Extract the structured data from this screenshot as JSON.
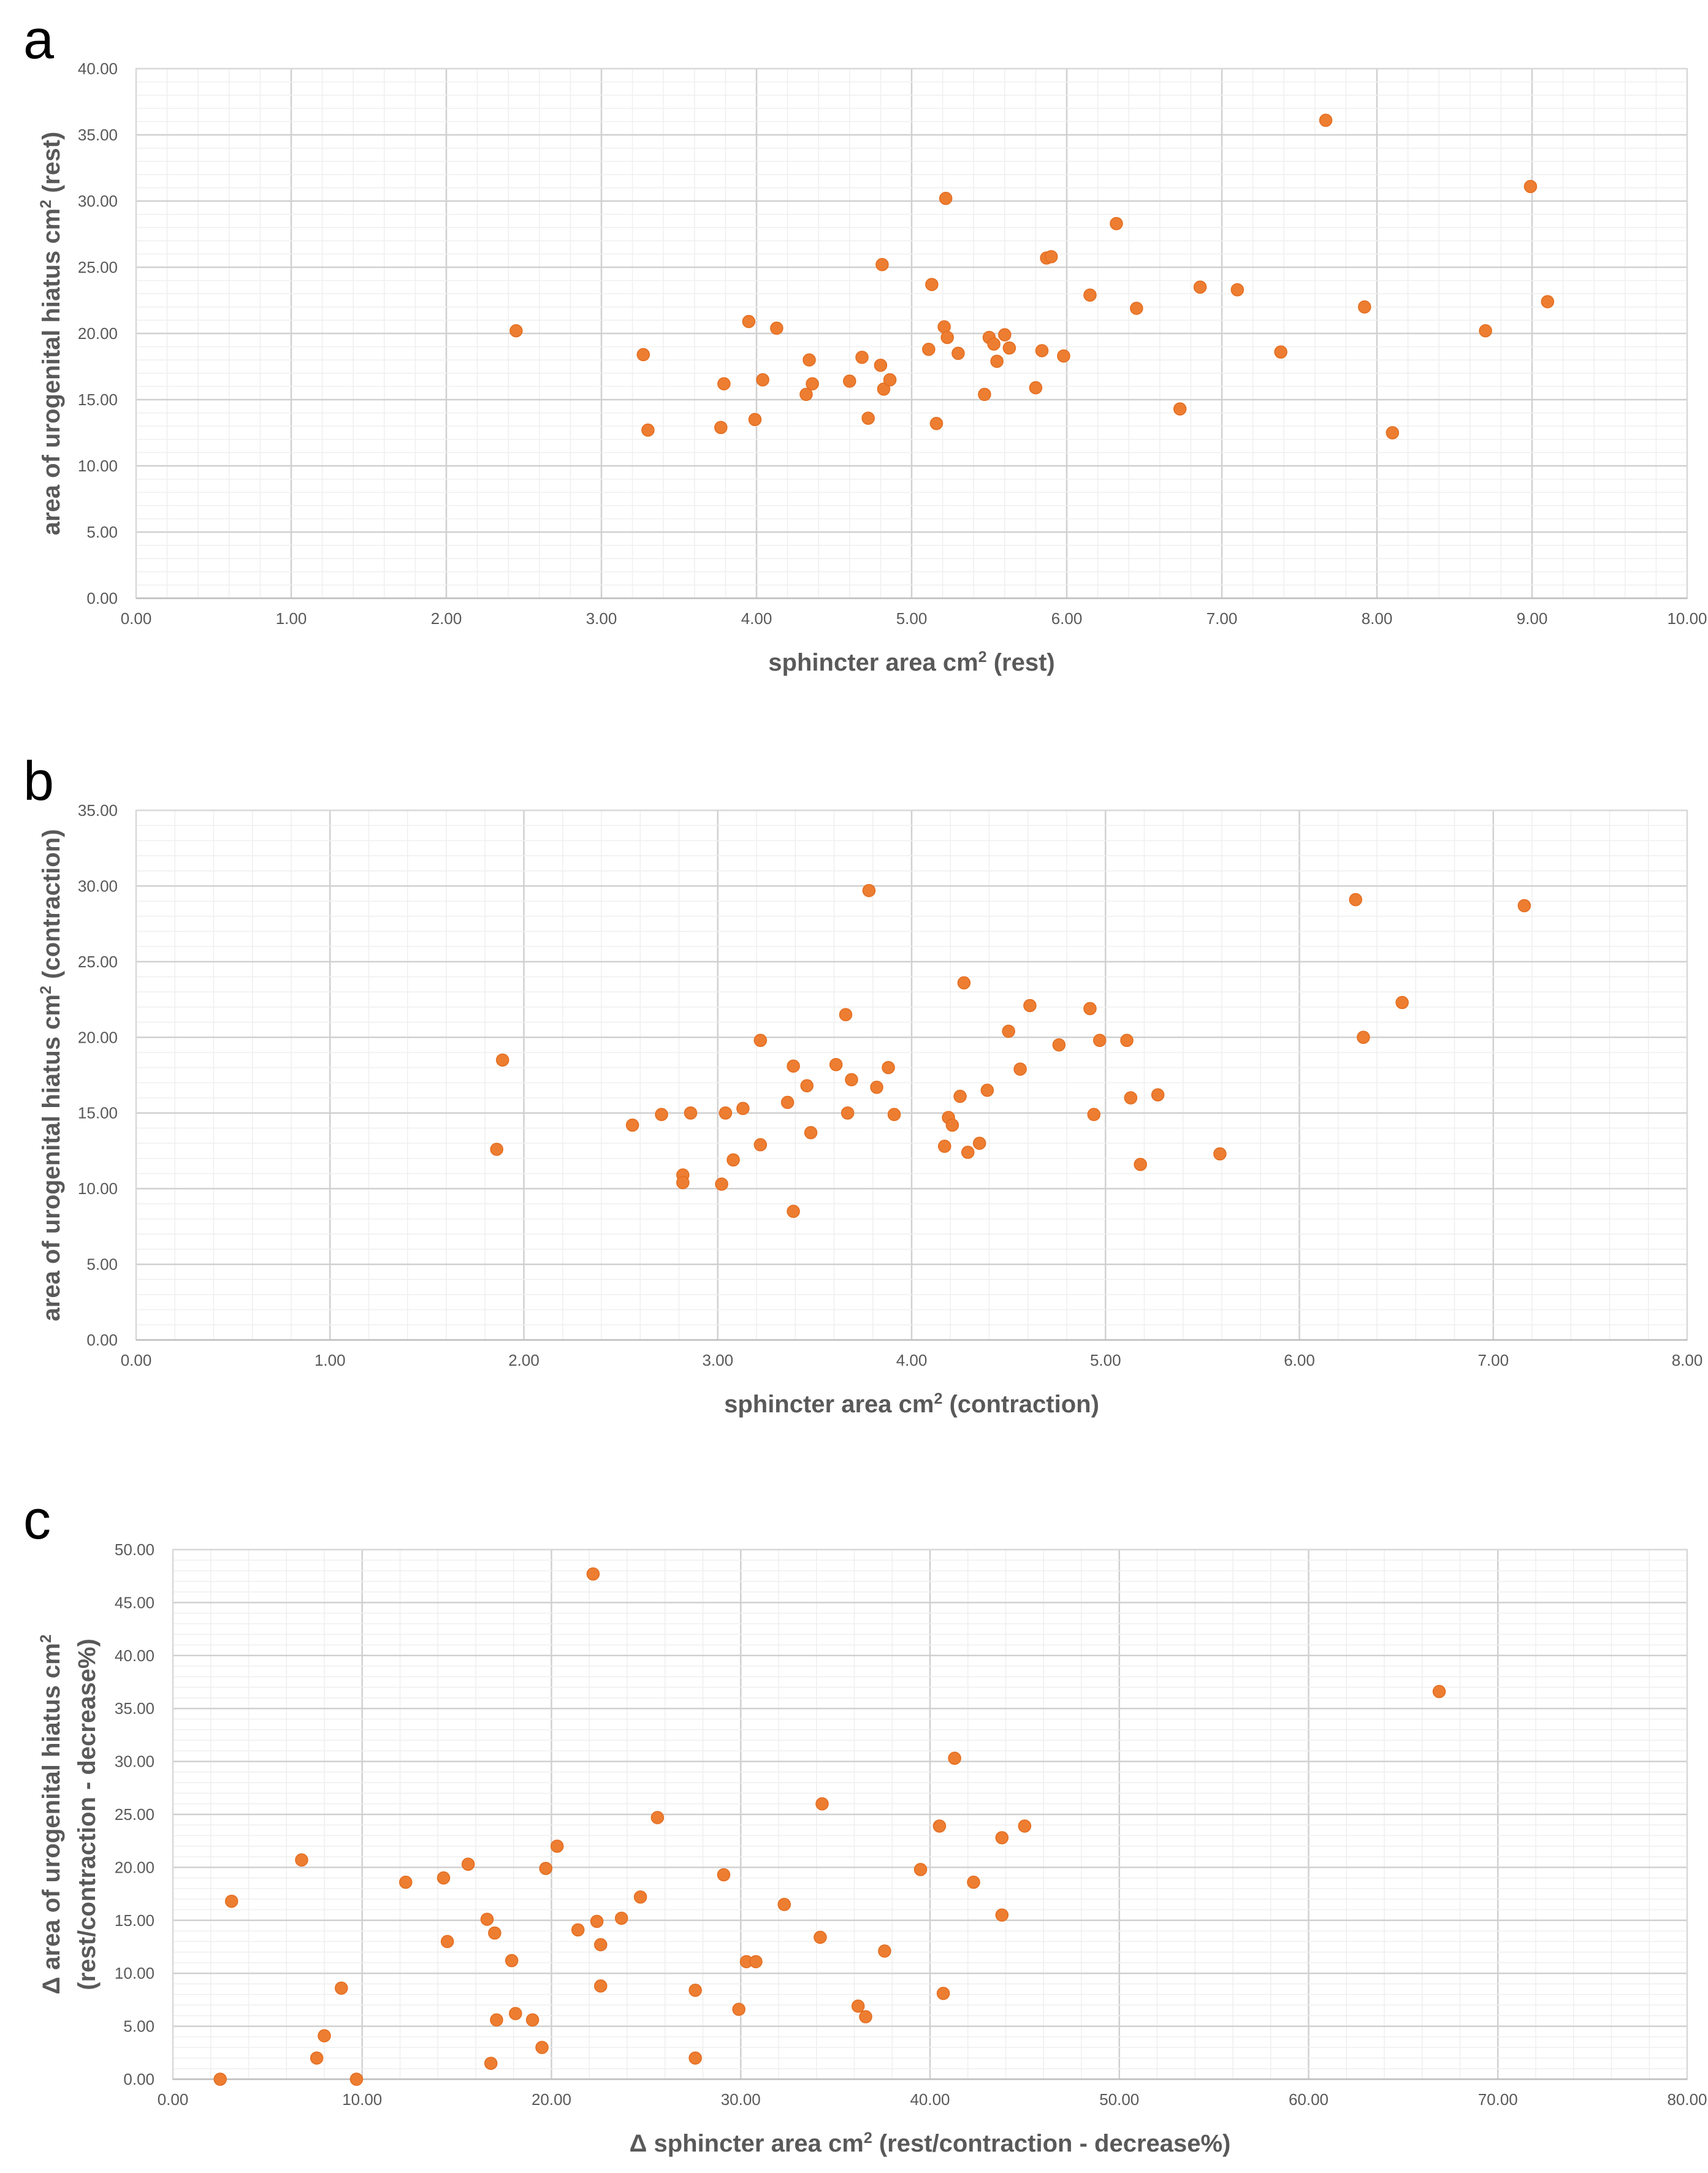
{
  "chart_data": [
    {
      "type": "scatter",
      "panel_label": "a",
      "xlabel_parts": [
        "sphincter area cm",
        "2",
        " (rest)"
      ],
      "ylabel_parts": [
        "area of urogenital hiatus cm",
        "2",
        " (rest)"
      ],
      "xlim": [
        0,
        10
      ],
      "ylim": [
        0,
        40
      ],
      "x_major": 1,
      "x_minor": 0.2,
      "y_major": 5,
      "y_minor": 1,
      "x_tick_labels": [
        "0.00",
        "1.00",
        "2.00",
        "3.00",
        "4.00",
        "5.00",
        "6.00",
        "7.00",
        "8.00",
        "9.00",
        "10.00"
      ],
      "y_tick_labels": [
        "0.00",
        "5.00",
        "10.00",
        "15.00",
        "20.00",
        "25.00",
        "30.00",
        "35.00",
        "40.00"
      ],
      "grid": true,
      "marker_color": "#ED7D31",
      "points": [
        [
          2.45,
          20.2
        ],
        [
          3.27,
          18.4
        ],
        [
          3.3,
          12.7
        ],
        [
          3.77,
          12.9
        ],
        [
          3.79,
          16.2
        ],
        [
          3.95,
          20.9
        ],
        [
          3.99,
          13.5
        ],
        [
          4.04,
          16.5
        ],
        [
          4.13,
          20.4
        ],
        [
          4.32,
          15.4
        ],
        [
          4.34,
          18.0
        ],
        [
          4.36,
          16.2
        ],
        [
          4.6,
          16.4
        ],
        [
          4.68,
          18.2
        ],
        [
          4.72,
          13.6
        ],
        [
          4.8,
          17.6
        ],
        [
          4.81,
          25.2
        ],
        [
          4.82,
          15.8
        ],
        [
          4.86,
          16.5
        ],
        [
          5.11,
          18.8
        ],
        [
          5.13,
          23.7
        ],
        [
          5.16,
          13.2
        ],
        [
          5.21,
          20.5
        ],
        [
          5.22,
          30.2
        ],
        [
          5.23,
          19.7
        ],
        [
          5.3,
          18.5
        ],
        [
          5.47,
          15.4
        ],
        [
          5.5,
          19.7
        ],
        [
          5.53,
          19.2
        ],
        [
          5.55,
          17.9
        ],
        [
          5.6,
          19.9
        ],
        [
          5.63,
          18.9
        ],
        [
          5.8,
          15.9
        ],
        [
          5.84,
          18.7
        ],
        [
          5.87,
          25.7
        ],
        [
          5.9,
          25.8
        ],
        [
          5.98,
          18.3
        ],
        [
          6.15,
          22.9
        ],
        [
          6.32,
          28.3
        ],
        [
          6.45,
          21.9
        ],
        [
          6.73,
          14.3
        ],
        [
          6.86,
          23.5
        ],
        [
          7.1,
          23.3
        ],
        [
          7.38,
          18.6
        ],
        [
          7.67,
          36.1
        ],
        [
          7.92,
          22.0
        ],
        [
          8.1,
          12.5
        ],
        [
          8.7,
          20.2
        ],
        [
          8.99,
          31.1
        ],
        [
          9.1,
          22.4
        ]
      ]
    },
    {
      "type": "scatter",
      "panel_label": "b",
      "xlabel_parts": [
        "sphincter area cm",
        "2",
        " (contraction)"
      ],
      "ylabel_parts": [
        "area of urogenital hiatus cm",
        "2",
        " (contraction)"
      ],
      "xlim": [
        0,
        8
      ],
      "ylim": [
        0,
        35
      ],
      "x_major": 1,
      "x_minor": 0.2,
      "y_major": 5,
      "y_minor": 1,
      "x_tick_labels": [
        "0.00",
        "1.00",
        "2.00",
        "3.00",
        "4.00",
        "5.00",
        "6.00",
        "7.00",
        "8.00"
      ],
      "y_tick_labels": [
        "0.00",
        "5.00",
        "10.00",
        "15.00",
        "20.00",
        "25.00",
        "30.00",
        "35.00"
      ],
      "grid": true,
      "marker_color": "#ED7D31",
      "points": [
        [
          1.86,
          12.6
        ],
        [
          1.89,
          18.5
        ],
        [
          2.56,
          14.2
        ],
        [
          2.71,
          14.9
        ],
        [
          2.82,
          10.9
        ],
        [
          2.82,
          10.4
        ],
        [
          2.86,
          15.0
        ],
        [
          3.02,
          10.3
        ],
        [
          3.04,
          15.0
        ],
        [
          3.08,
          11.9
        ],
        [
          3.13,
          15.3
        ],
        [
          3.22,
          19.8
        ],
        [
          3.22,
          12.9
        ],
        [
          3.36,
          15.7
        ],
        [
          3.39,
          18.1
        ],
        [
          3.39,
          8.5
        ],
        [
          3.46,
          16.8
        ],
        [
          3.48,
          13.7
        ],
        [
          3.61,
          18.2
        ],
        [
          3.66,
          21.5
        ],
        [
          3.67,
          15.0
        ],
        [
          3.69,
          17.2
        ],
        [
          3.78,
          29.7
        ],
        [
          3.82,
          16.7
        ],
        [
          3.88,
          18.0
        ],
        [
          3.91,
          14.9
        ],
        [
          4.17,
          12.8
        ],
        [
          4.19,
          14.7
        ],
        [
          4.21,
          14.2
        ],
        [
          4.25,
          16.1
        ],
        [
          4.27,
          23.6
        ],
        [
          4.29,
          12.4
        ],
        [
          4.35,
          13.0
        ],
        [
          4.39,
          16.5
        ],
        [
          4.5,
          20.4
        ],
        [
          4.56,
          17.9
        ],
        [
          4.61,
          22.1
        ],
        [
          4.76,
          19.5
        ],
        [
          4.92,
          21.9
        ],
        [
          4.94,
          14.9
        ],
        [
          4.97,
          19.8
        ],
        [
          5.11,
          19.8
        ],
        [
          5.13,
          16.0
        ],
        [
          5.18,
          11.6
        ],
        [
          5.27,
          16.2
        ],
        [
          5.59,
          12.3
        ],
        [
          6.29,
          29.1
        ],
        [
          6.33,
          20.0
        ],
        [
          6.53,
          22.3
        ],
        [
          7.16,
          28.7
        ]
      ]
    },
    {
      "type": "scatter",
      "panel_label": "c",
      "xlabel_parts": [
        "Δ sphincter area cm",
        "2",
        " (rest/contraction - decrease%)"
      ],
      "ylabel_line1_parts": [
        "Δ area of urogenital hiatus cm",
        "2"
      ],
      "ylabel_line2": "(rest/contraction - decrease%)",
      "xlim": [
        0,
        80
      ],
      "ylim": [
        0,
        50
      ],
      "x_major": 10,
      "x_minor": 2,
      "y_major": 5,
      "y_minor": 1,
      "x_tick_labels": [
        "0.00",
        "10.00",
        "20.00",
        "30.00",
        "40.00",
        "50.00",
        "60.00",
        "70.00",
        "80.00"
      ],
      "y_tick_labels": [
        "0.00",
        "5.00",
        "10.00",
        "15.00",
        "20.00",
        "25.00",
        "30.00",
        "35.00",
        "40.00",
        "45.00",
        "50.00"
      ],
      "grid": true,
      "marker_color": "#ED7D31",
      "points": [
        [
          2.5,
          0.0
        ],
        [
          3.1,
          16.8
        ],
        [
          6.8,
          20.7
        ],
        [
          7.6,
          2.0
        ],
        [
          8.0,
          4.1
        ],
        [
          8.9,
          8.6
        ],
        [
          9.7,
          0.0
        ],
        [
          12.3,
          18.6
        ],
        [
          14.3,
          19.0
        ],
        [
          14.5,
          13.0
        ],
        [
          15.6,
          20.3
        ],
        [
          16.6,
          15.1
        ],
        [
          16.8,
          1.5
        ],
        [
          17.0,
          13.8
        ],
        [
          17.1,
          5.6
        ],
        [
          17.9,
          11.2
        ],
        [
          18.1,
          6.2
        ],
        [
          19.0,
          5.6
        ],
        [
          19.5,
          3.0
        ],
        [
          19.7,
          19.9
        ],
        [
          20.3,
          22.0
        ],
        [
          21.4,
          14.1
        ],
        [
          22.2,
          47.7
        ],
        [
          22.4,
          14.9
        ],
        [
          22.6,
          8.8
        ],
        [
          22.6,
          12.7
        ],
        [
          23.7,
          15.2
        ],
        [
          24.7,
          17.2
        ],
        [
          25.6,
          24.7
        ],
        [
          27.6,
          8.4
        ],
        [
          27.6,
          2.0
        ],
        [
          29.1,
          19.3
        ],
        [
          29.9,
          6.6
        ],
        [
          30.3,
          11.1
        ],
        [
          30.8,
          11.1
        ],
        [
          32.3,
          16.5
        ],
        [
          34.2,
          13.4
        ],
        [
          34.3,
          26.0
        ],
        [
          36.2,
          6.9
        ],
        [
          36.6,
          5.9
        ],
        [
          37.6,
          12.1
        ],
        [
          39.5,
          19.8
        ],
        [
          40.5,
          23.9
        ],
        [
          40.7,
          8.1
        ],
        [
          41.3,
          30.3
        ],
        [
          42.3,
          18.6
        ],
        [
          43.8,
          22.8
        ],
        [
          43.8,
          15.5
        ],
        [
          45.0,
          23.9
        ],
        [
          66.9,
          36.6
        ]
      ]
    }
  ]
}
